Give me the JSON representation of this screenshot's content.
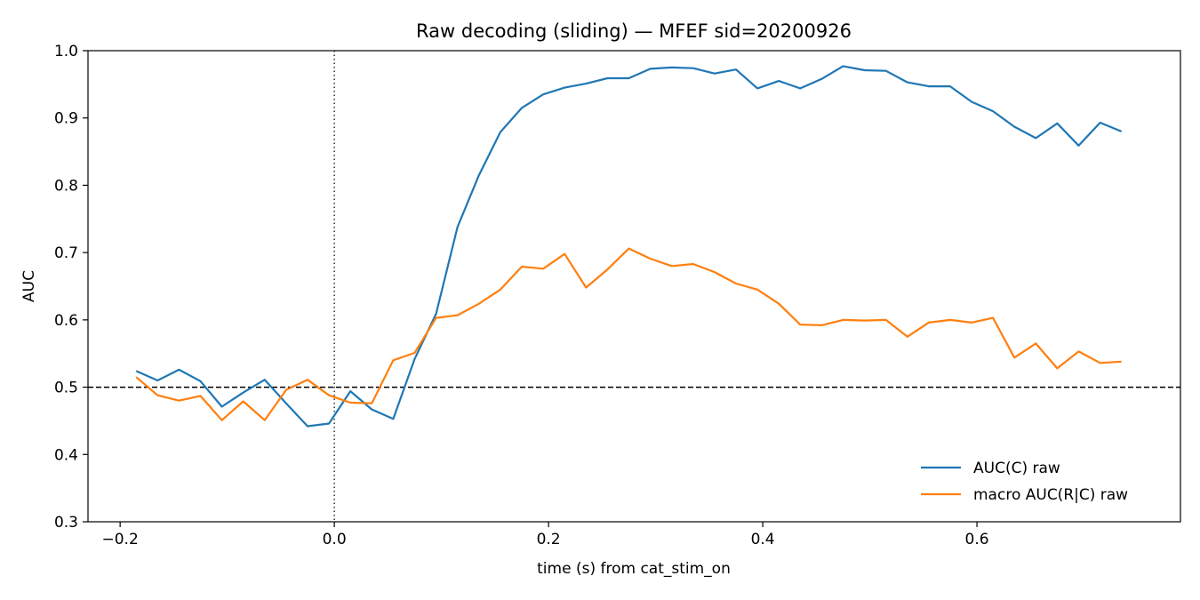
{
  "chart_data": {
    "type": "line",
    "title": "Raw decoding (sliding) — MFEF sid=20200926",
    "xlabel": "time (s) from cat_stim_on",
    "ylabel": "AUC",
    "xlim": [
      -0.23,
      0.79
    ],
    "ylim": [
      0.3,
      1.0
    ],
    "xticks": [
      -0.2,
      0.0,
      0.2,
      0.4,
      0.6
    ],
    "xtick_labels": [
      "−0.2",
      "0.0",
      "0.2",
      "0.4",
      "0.6"
    ],
    "yticks": [
      0.3,
      0.4,
      0.5,
      0.6,
      0.7,
      0.8,
      0.9,
      1.0
    ],
    "ytick_labels": [
      "0.3",
      "0.4",
      "0.5",
      "0.6",
      "0.7",
      "0.8",
      "0.9",
      "1.0"
    ],
    "grid": false,
    "legend_position": "lower-right",
    "reference_lines": [
      {
        "orientation": "horizontal",
        "value": 0.5,
        "style": "dashed"
      },
      {
        "orientation": "vertical",
        "value": 0.0,
        "style": "dotted"
      }
    ],
    "x": [
      -0.185,
      -0.165,
      -0.145,
      -0.125,
      -0.105,
      -0.085,
      -0.065,
      -0.045,
      -0.025,
      -0.005,
      0.015,
      0.035,
      0.055,
      0.075,
      0.095,
      0.115,
      0.135,
      0.155,
      0.175,
      0.195,
      0.215,
      0.235,
      0.255,
      0.275,
      0.295,
      0.315,
      0.335,
      0.355,
      0.375,
      0.395,
      0.415,
      0.435,
      0.455,
      0.475,
      0.495,
      0.515,
      0.535,
      0.555,
      0.575,
      0.595,
      0.615,
      0.635,
      0.655,
      0.675,
      0.695,
      0.715,
      0.735
    ],
    "series": [
      {
        "name": "AUC(C) raw",
        "color": "#1f77b4",
        "values": [
          0.524,
          0.51,
          0.526,
          0.509,
          0.471,
          0.492,
          0.511,
          0.476,
          0.442,
          0.446,
          0.494,
          0.467,
          0.453,
          0.542,
          0.609,
          0.738,
          0.815,
          0.879,
          0.915,
          0.935,
          0.945,
          0.951,
          0.959,
          0.959,
          0.973,
          0.975,
          0.974,
          0.966,
          0.972,
          0.944,
          0.955,
          0.944,
          0.958,
          0.977,
          0.971,
          0.97,
          0.953,
          0.947,
          0.947,
          0.924,
          0.91,
          0.887,
          0.87,
          0.892,
          0.859,
          0.893,
          0.88
        ]
      },
      {
        "name": "macro AUC(R|C) raw",
        "color": "#ff7f0e",
        "values": [
          0.515,
          0.488,
          0.48,
          0.487,
          0.451,
          0.479,
          0.451,
          0.496,
          0.511,
          0.488,
          0.477,
          0.476,
          0.54,
          0.551,
          0.603,
          0.607,
          0.624,
          0.645,
          0.679,
          0.676,
          0.698,
          0.648,
          0.675,
          0.706,
          0.691,
          0.68,
          0.683,
          0.671,
          0.654,
          0.645,
          0.624,
          0.593,
          0.592,
          0.6,
          0.599,
          0.6,
          0.575,
          0.596,
          0.6,
          0.596,
          0.603,
          0.544,
          0.565,
          0.528,
          0.553,
          0.536,
          0.538
        ]
      }
    ]
  }
}
